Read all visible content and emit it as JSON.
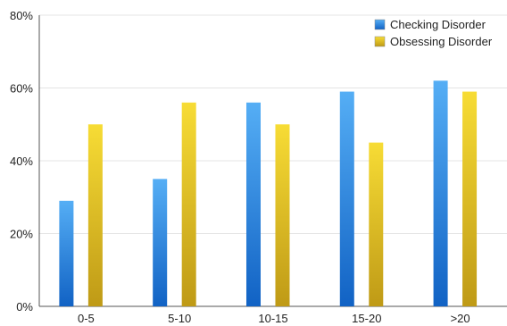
{
  "chart_data": {
    "type": "bar",
    "categories": [
      "0-5",
      "5-10",
      "10-15",
      "15-20",
      ">20"
    ],
    "series": [
      {
        "name": "Checking Disorder",
        "values": [
          29,
          35,
          56,
          59,
          62
        ],
        "color": "#3d8fe0"
      },
      {
        "name": "Obsessing Disorder",
        "values": [
          50,
          56,
          50,
          45,
          59
        ],
        "color": "#e6c31e"
      }
    ],
    "ylim": [
      0,
      80
    ],
    "yticks": [
      0,
      20,
      40,
      60,
      80
    ],
    "ytick_labels": [
      "0%",
      "20%",
      "40%",
      "60%",
      "80%"
    ],
    "legend_position": "top-right",
    "grid": true
  }
}
